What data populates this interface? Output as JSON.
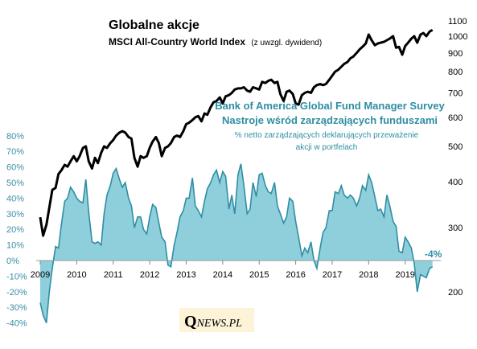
{
  "chart_data": {
    "type": "area+line",
    "title": "Globalne akcje",
    "subtitle_bold": "MSCI All-Country World Index",
    "subtitle_normal": "(z uwzgl. dywidend)",
    "survey_title_line1": "Bank of America Global Fund Manager Survey",
    "survey_title_line2": "Nastroje wśród zarządzających  funduszami",
    "survey_desc_line1": "% netto zarządzających deklarujących przeważenie",
    "survey_desc_line2": "akcji w portfelach",
    "last_value_label": "-4%",
    "logo_q": "Q",
    "logo_rest": "NEWS.PL",
    "x_ticks": [
      "2009",
      "2010",
      "2011",
      "2012",
      "2013",
      "2014",
      "2015",
      "2016",
      "2017",
      "2018",
      "2019"
    ],
    "left_axis": {
      "ticks": [
        "-40%",
        "-30%",
        "-20%",
        "-10%",
        "0%",
        "10%",
        "20%",
        "30%",
        "40%",
        "50%",
        "60%",
        "70%",
        "80%"
      ],
      "range": [
        -40,
        80
      ]
    },
    "right_axis": {
      "scale": "log",
      "ticks": [
        "200",
        "300",
        "400",
        "500",
        "600",
        "700",
        "800",
        "900",
        "1000",
        "1100"
      ],
      "range": [
        150,
        1150
      ]
    },
    "colors": {
      "area_fill": "#8fcfdc",
      "area_stroke": "#2f8ea3",
      "index_line": "#000000",
      "left_axis_text": "#3a8fa6"
    },
    "series": [
      {
        "name": "% netto zarządzających deklarujących przeważenie akcji w portfelach",
        "axis": "left",
        "x": [
          2009.0,
          2009.08,
          2009.17,
          2009.25,
          2009.33,
          2009.42,
          2009.5,
          2009.58,
          2009.67,
          2009.75,
          2009.83,
          2009.92,
          2010.0,
          2010.08,
          2010.17,
          2010.25,
          2010.33,
          2010.42,
          2010.5,
          2010.58,
          2010.67,
          2010.75,
          2010.83,
          2010.92,
          2011.0,
          2011.08,
          2011.17,
          2011.25,
          2011.33,
          2011.42,
          2011.5,
          2011.58,
          2011.67,
          2011.75,
          2011.83,
          2011.92,
          2012.0,
          2012.08,
          2012.17,
          2012.25,
          2012.33,
          2012.42,
          2012.5,
          2012.58,
          2012.67,
          2012.75,
          2012.83,
          2012.92,
          2013.0,
          2013.08,
          2013.17,
          2013.25,
          2013.33,
          2013.42,
          2013.5,
          2013.58,
          2013.67,
          2013.75,
          2013.83,
          2013.92,
          2014.0,
          2014.08,
          2014.17,
          2014.25,
          2014.33,
          2014.42,
          2014.5,
          2014.58,
          2014.67,
          2014.75,
          2014.83,
          2014.92,
          2015.0,
          2015.08,
          2015.17,
          2015.25,
          2015.33,
          2015.42,
          2015.5,
          2015.58,
          2015.67,
          2015.75,
          2015.83,
          2015.92,
          2016.0,
          2016.08,
          2016.17,
          2016.25,
          2016.33,
          2016.42,
          2016.5,
          2016.58,
          2016.67,
          2016.75,
          2016.83,
          2016.92,
          2017.0,
          2017.08,
          2017.17,
          2017.25,
          2017.33,
          2017.42,
          2017.5,
          2017.58,
          2017.67,
          2017.75,
          2017.83,
          2017.92,
          2018.0,
          2018.08,
          2018.17,
          2018.25,
          2018.33,
          2018.42,
          2018.5,
          2018.58,
          2018.67,
          2018.75,
          2018.83,
          2018.92,
          2019.0,
          2019.08,
          2019.17,
          2019.25,
          2019.33,
          2019.42,
          2019.5,
          2019.58,
          2019.67,
          2019.75
        ],
        "values": [
          -27,
          -35,
          -40,
          -20,
          -5,
          9,
          8,
          23,
          38,
          40,
          47,
          44,
          40,
          38,
          37,
          52,
          31,
          12,
          11,
          12,
          10,
          30,
          42,
          48,
          56,
          59,
          52,
          47,
          50,
          40,
          35,
          21,
          28,
          28,
          20,
          17,
          28,
          36,
          34,
          24,
          15,
          12,
          -3,
          -4,
          10,
          18,
          28,
          32,
          40,
          40,
          53,
          35,
          32,
          28,
          38,
          46,
          50,
          55,
          58,
          50,
          57,
          54,
          33,
          42,
          30,
          55,
          62,
          48,
          30,
          33,
          50,
          41,
          55,
          56,
          48,
          44,
          43,
          50,
          35,
          30,
          24,
          28,
          40,
          38,
          25,
          15,
          3,
          8,
          5,
          12,
          0,
          -5,
          8,
          18,
          21,
          32,
          32,
          44,
          43,
          48,
          42,
          40,
          42,
          40,
          35,
          40,
          48,
          45,
          55,
          50,
          41,
          32,
          33,
          28,
          42,
          35,
          25,
          22,
          6,
          5,
          15,
          12,
          8,
          -2,
          -20,
          -9,
          -10,
          -11,
          -5,
          -4
        ]
      },
      {
        "name": "MSCI All-Country World Index",
        "axis": "right",
        "x": [
          2009.0,
          2009.08,
          2009.17,
          2009.25,
          2009.33,
          2009.42,
          2009.5,
          2009.58,
          2009.67,
          2009.75,
          2009.83,
          2009.92,
          2010.0,
          2010.08,
          2010.17,
          2010.25,
          2010.33,
          2010.42,
          2010.5,
          2010.58,
          2010.67,
          2010.75,
          2010.83,
          2010.92,
          2011.0,
          2011.08,
          2011.17,
          2011.25,
          2011.33,
          2011.42,
          2011.5,
          2011.58,
          2011.67,
          2011.75,
          2011.83,
          2011.92,
          2012.0,
          2012.08,
          2012.17,
          2012.25,
          2012.33,
          2012.42,
          2012.5,
          2012.58,
          2012.67,
          2012.75,
          2012.83,
          2012.92,
          2013.0,
          2013.08,
          2013.17,
          2013.25,
          2013.33,
          2013.42,
          2013.5,
          2013.58,
          2013.67,
          2013.75,
          2013.83,
          2013.92,
          2014.0,
          2014.08,
          2014.17,
          2014.25,
          2014.33,
          2014.42,
          2014.5,
          2014.58,
          2014.67,
          2014.75,
          2014.83,
          2014.92,
          2015.0,
          2015.08,
          2015.17,
          2015.25,
          2015.33,
          2015.42,
          2015.5,
          2015.58,
          2015.67,
          2015.75,
          2015.83,
          2015.92,
          2016.0,
          2016.08,
          2016.17,
          2016.25,
          2016.33,
          2016.42,
          2016.5,
          2016.58,
          2016.67,
          2016.75,
          2016.83,
          2016.92,
          2017.0,
          2017.08,
          2017.17,
          2017.25,
          2017.33,
          2017.42,
          2017.5,
          2017.58,
          2017.67,
          2017.75,
          2017.83,
          2017.92,
          2018.0,
          2018.08,
          2018.17,
          2018.25,
          2018.33,
          2018.42,
          2018.5,
          2018.58,
          2018.67,
          2018.75,
          2018.83,
          2018.92,
          2019.0,
          2019.08,
          2019.17,
          2019.25,
          2019.33,
          2019.42,
          2019.5,
          2019.58,
          2019.67,
          2019.75
        ],
        "values": [
          320,
          285,
          305,
          340,
          380,
          385,
          420,
          430,
          445,
          440,
          455,
          470,
          455,
          470,
          495,
          500,
          455,
          435,
          465,
          450,
          480,
          500,
          495,
          510,
          520,
          535,
          545,
          550,
          545,
          530,
          525,
          465,
          440,
          470,
          465,
          470,
          495,
          515,
          530,
          510,
          470,
          495,
          500,
          510,
          530,
          535,
          530,
          550,
          575,
          580,
          590,
          600,
          605,
          585,
          615,
          610,
          640,
          660,
          665,
          680,
          655,
          685,
          690,
          700,
          715,
          720,
          720,
          725,
          710,
          705,
          725,
          720,
          715,
          750,
          745,
          755,
          760,
          745,
          750,
          695,
          665,
          705,
          710,
          695,
          655,
          650,
          690,
          700,
          705,
          700,
          725,
          735,
          740,
          735,
          740,
          760,
          780,
          800,
          810,
          825,
          840,
          850,
          870,
          880,
          900,
          920,
          935,
          955,
          1010,
          975,
          945,
          955,
          960,
          965,
          975,
          985,
          1000,
          930,
          935,
          890,
          940,
          960,
          985,
          1000,
          960,
          1010,
          1020,
          1000,
          1030,
          1040
        ]
      }
    ]
  }
}
